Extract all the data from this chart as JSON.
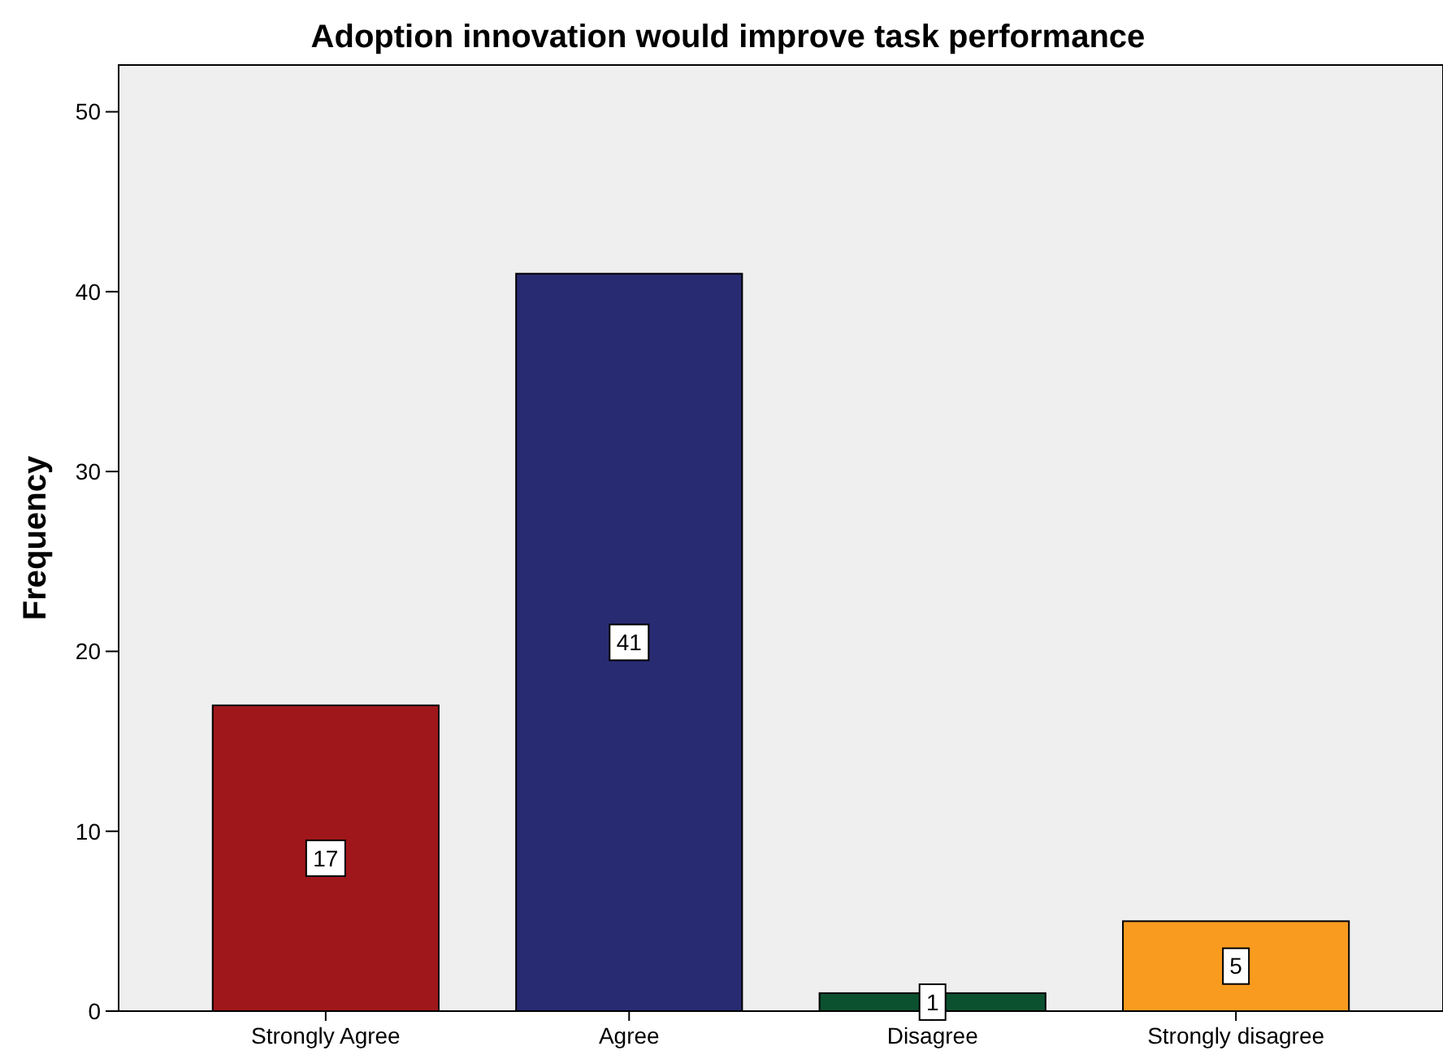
{
  "chart_data": {
    "type": "bar",
    "title": "Adoption innovation would improve task performance",
    "ylabel": "Frequency",
    "categories": [
      "Strongly Agree",
      "Agree",
      "Disagree",
      "Strongly disagree"
    ],
    "values": [
      17,
      41,
      1,
      5
    ],
    "colors": [
      "#a0171b",
      "#292b72",
      "#0b5130",
      "#f89b1f"
    ],
    "ylim": [
      0,
      52.6
    ],
    "yticks": [
      0,
      10,
      20,
      30,
      40,
      50
    ],
    "data_labels": true,
    "grid": false
  }
}
